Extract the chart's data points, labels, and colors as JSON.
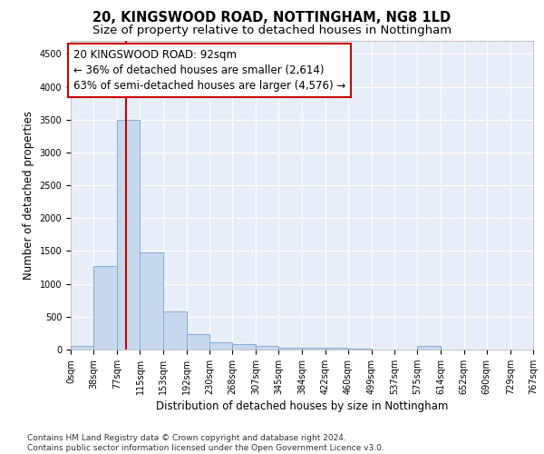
{
  "title": "20, KINGSWOOD ROAD, NOTTINGHAM, NG8 1LD",
  "subtitle": "Size of property relative to detached houses in Nottingham",
  "xlabel": "Distribution of detached houses by size in Nottingham",
  "ylabel": "Number of detached properties",
  "footer_line1": "Contains HM Land Registry data © Crown copyright and database right 2024.",
  "footer_line2": "Contains public sector information licensed under the Open Government Licence v3.0.",
  "bin_edges": [
    0,
    38,
    77,
    115,
    153,
    192,
    230,
    268,
    307,
    345,
    384,
    422,
    460,
    499,
    537,
    575,
    614,
    652,
    690,
    729,
    767
  ],
  "bar_heights": [
    50,
    1270,
    3500,
    1480,
    575,
    240,
    115,
    85,
    55,
    30,
    30,
    25,
    20,
    0,
    0,
    50,
    0,
    0,
    0,
    0
  ],
  "bar_color": "#c8d8ec",
  "bar_edge_color": "#7fadd4",
  "red_line_x": 92,
  "annotation_line1": "20 KINGSWOOD ROAD: 92sqm",
  "annotation_line2": "← 36% of detached houses are smaller (2,614)",
  "annotation_line3": "63% of semi-detached houses are larger (4,576) →",
  "annotation_box_facecolor": "#ffffff",
  "annotation_box_edgecolor": "#cc0000",
  "red_line_color": "#cc0000",
  "ylim": [
    0,
    4700
  ],
  "yticks": [
    0,
    500,
    1000,
    1500,
    2000,
    2500,
    3000,
    3500,
    4000,
    4500
  ],
  "xlim": [
    0,
    767
  ],
  "background_color": "#e8eef8",
  "grid_color": "#ffffff",
  "title_fontsize": 10.5,
  "subtitle_fontsize": 9.5,
  "xlabel_fontsize": 8.5,
  "ylabel_fontsize": 8.5,
  "tick_fontsize": 7,
  "annotation_fontsize": 8.5,
  "footer_fontsize": 6.5
}
